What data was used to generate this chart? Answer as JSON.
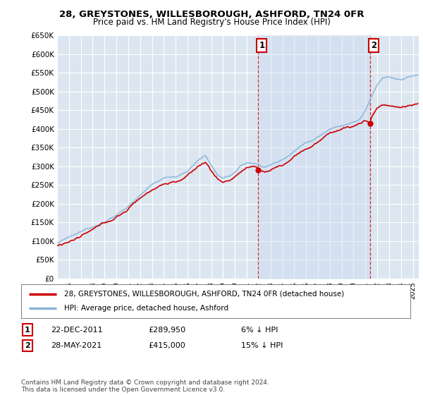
{
  "title": "28, GREYSTONES, WILLESBOROUGH, ASHFORD, TN24 0FR",
  "subtitle": "Price paid vs. HM Land Registry's House Price Index (HPI)",
  "background_color": "#ffffff",
  "plot_bg_color": "#dce6f0",
  "grid_color": "#ffffff",
  "hpi_color": "#8ab4d8",
  "price_color": "#cc0000",
  "ylim": [
    0,
    650000
  ],
  "yticks": [
    0,
    50000,
    100000,
    150000,
    200000,
    250000,
    300000,
    350000,
    400000,
    450000,
    500000,
    550000,
    600000,
    650000
  ],
  "ytick_labels": [
    "£0",
    "£50K",
    "£100K",
    "£150K",
    "£200K",
    "£250K",
    "£300K",
    "£350K",
    "£400K",
    "£450K",
    "£500K",
    "£550K",
    "£600K",
    "£650K"
  ],
  "sale1_date": "22-DEC-2011",
  "sale1_price": 289950,
  "sale1_hpi_diff": "6% ↓ HPI",
  "sale1_x": 2011.97,
  "sale2_date": "28-MAY-2021",
  "sale2_price": 415000,
  "sale2_hpi_diff": "15% ↓ HPI",
  "sale2_x": 2021.41,
  "legend_line1": "28, GREYSTONES, WILLESBOROUGH, ASHFORD, TN24 0FR (detached house)",
  "legend_line2": "HPI: Average price, detached house, Ashford",
  "footnote": "Contains HM Land Registry data © Crown copyright and database right 2024.\nThis data is licensed under the Open Government Licence v3.0.",
  "xtick_years": [
    1995,
    1996,
    1997,
    1998,
    1999,
    2000,
    2001,
    2002,
    2003,
    2004,
    2005,
    2006,
    2007,
    2008,
    2009,
    2010,
    2011,
    2012,
    2013,
    2014,
    2015,
    2016,
    2017,
    2018,
    2019,
    2020,
    2021,
    2022,
    2023,
    2024,
    2025
  ]
}
